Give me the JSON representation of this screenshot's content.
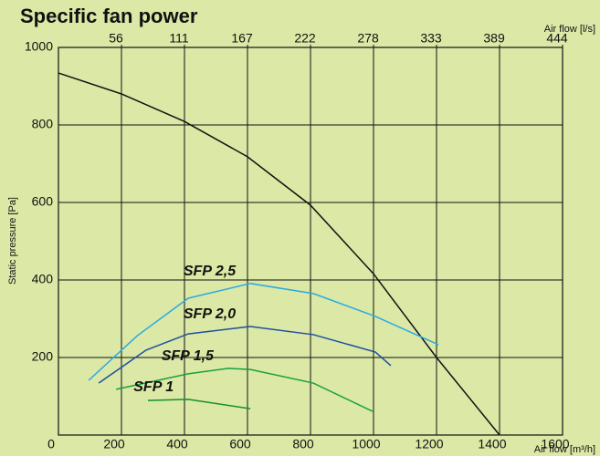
{
  "chart_data": {
    "type": "line",
    "title": "Specific fan power",
    "ylabel": "Static pressure [Pa]",
    "xlabel": "Air flow [m³/h]",
    "x2label": "Air flow [l/s]",
    "xlim": [
      0,
      1600
    ],
    "xticks": [
      0,
      200,
      400,
      600,
      800,
      1000,
      1200,
      1400,
      1600
    ],
    "x2lim": [
      0,
      444.4
    ],
    "x2ticks": [
      {
        "value": 55.6,
        "label": "56"
      },
      {
        "value": 111.1,
        "label": "111"
      },
      {
        "value": 166.7,
        "label": "167"
      },
      {
        "value": 222.2,
        "label": "222"
      },
      {
        "value": 277.8,
        "label": "278"
      },
      {
        "value": 333.3,
        "label": "333"
      },
      {
        "value": 388.9,
        "label": "389"
      },
      {
        "value": 444.4,
        "label": "444"
      }
    ],
    "ylim": [
      0,
      1000
    ],
    "yticks": [
      200,
      400,
      600,
      800,
      1000
    ],
    "grid": true,
    "series": [
      {
        "color": "#111111",
        "x": [
          0,
          200,
          400,
          600,
          800,
          1000,
          1200,
          1400
        ],
        "values": [
          934,
          880,
          809,
          718,
          593,
          416,
          200,
          0
        ]
      },
      {
        "name": "SFP 2,5",
        "color": "#29abe2",
        "x": [
          96,
          250,
          412,
          609,
          809,
          1006,
          1206
        ],
        "values": [
          141,
          256,
          353,
          391,
          365,
          306,
          233
        ]
      },
      {
        "name": "SFP 2,0",
        "color": "#1f4fa0",
        "x": [
          128,
          278,
          412,
          609,
          809,
          1006,
          1055
        ],
        "values": [
          134,
          219,
          261,
          280,
          259,
          214,
          179
        ]
      },
      {
        "name": "SFP 1,5",
        "color": "#1aa040",
        "x": [
          183,
          412,
          539,
          609,
          809,
          997
        ],
        "values": [
          118,
          158,
          172,
          169,
          134,
          61
        ]
      },
      {
        "name": "SFP 1",
        "color": "#139030",
        "x": [
          284,
          412,
          609
        ],
        "values": [
          89,
          92,
          68
        ]
      }
    ]
  }
}
